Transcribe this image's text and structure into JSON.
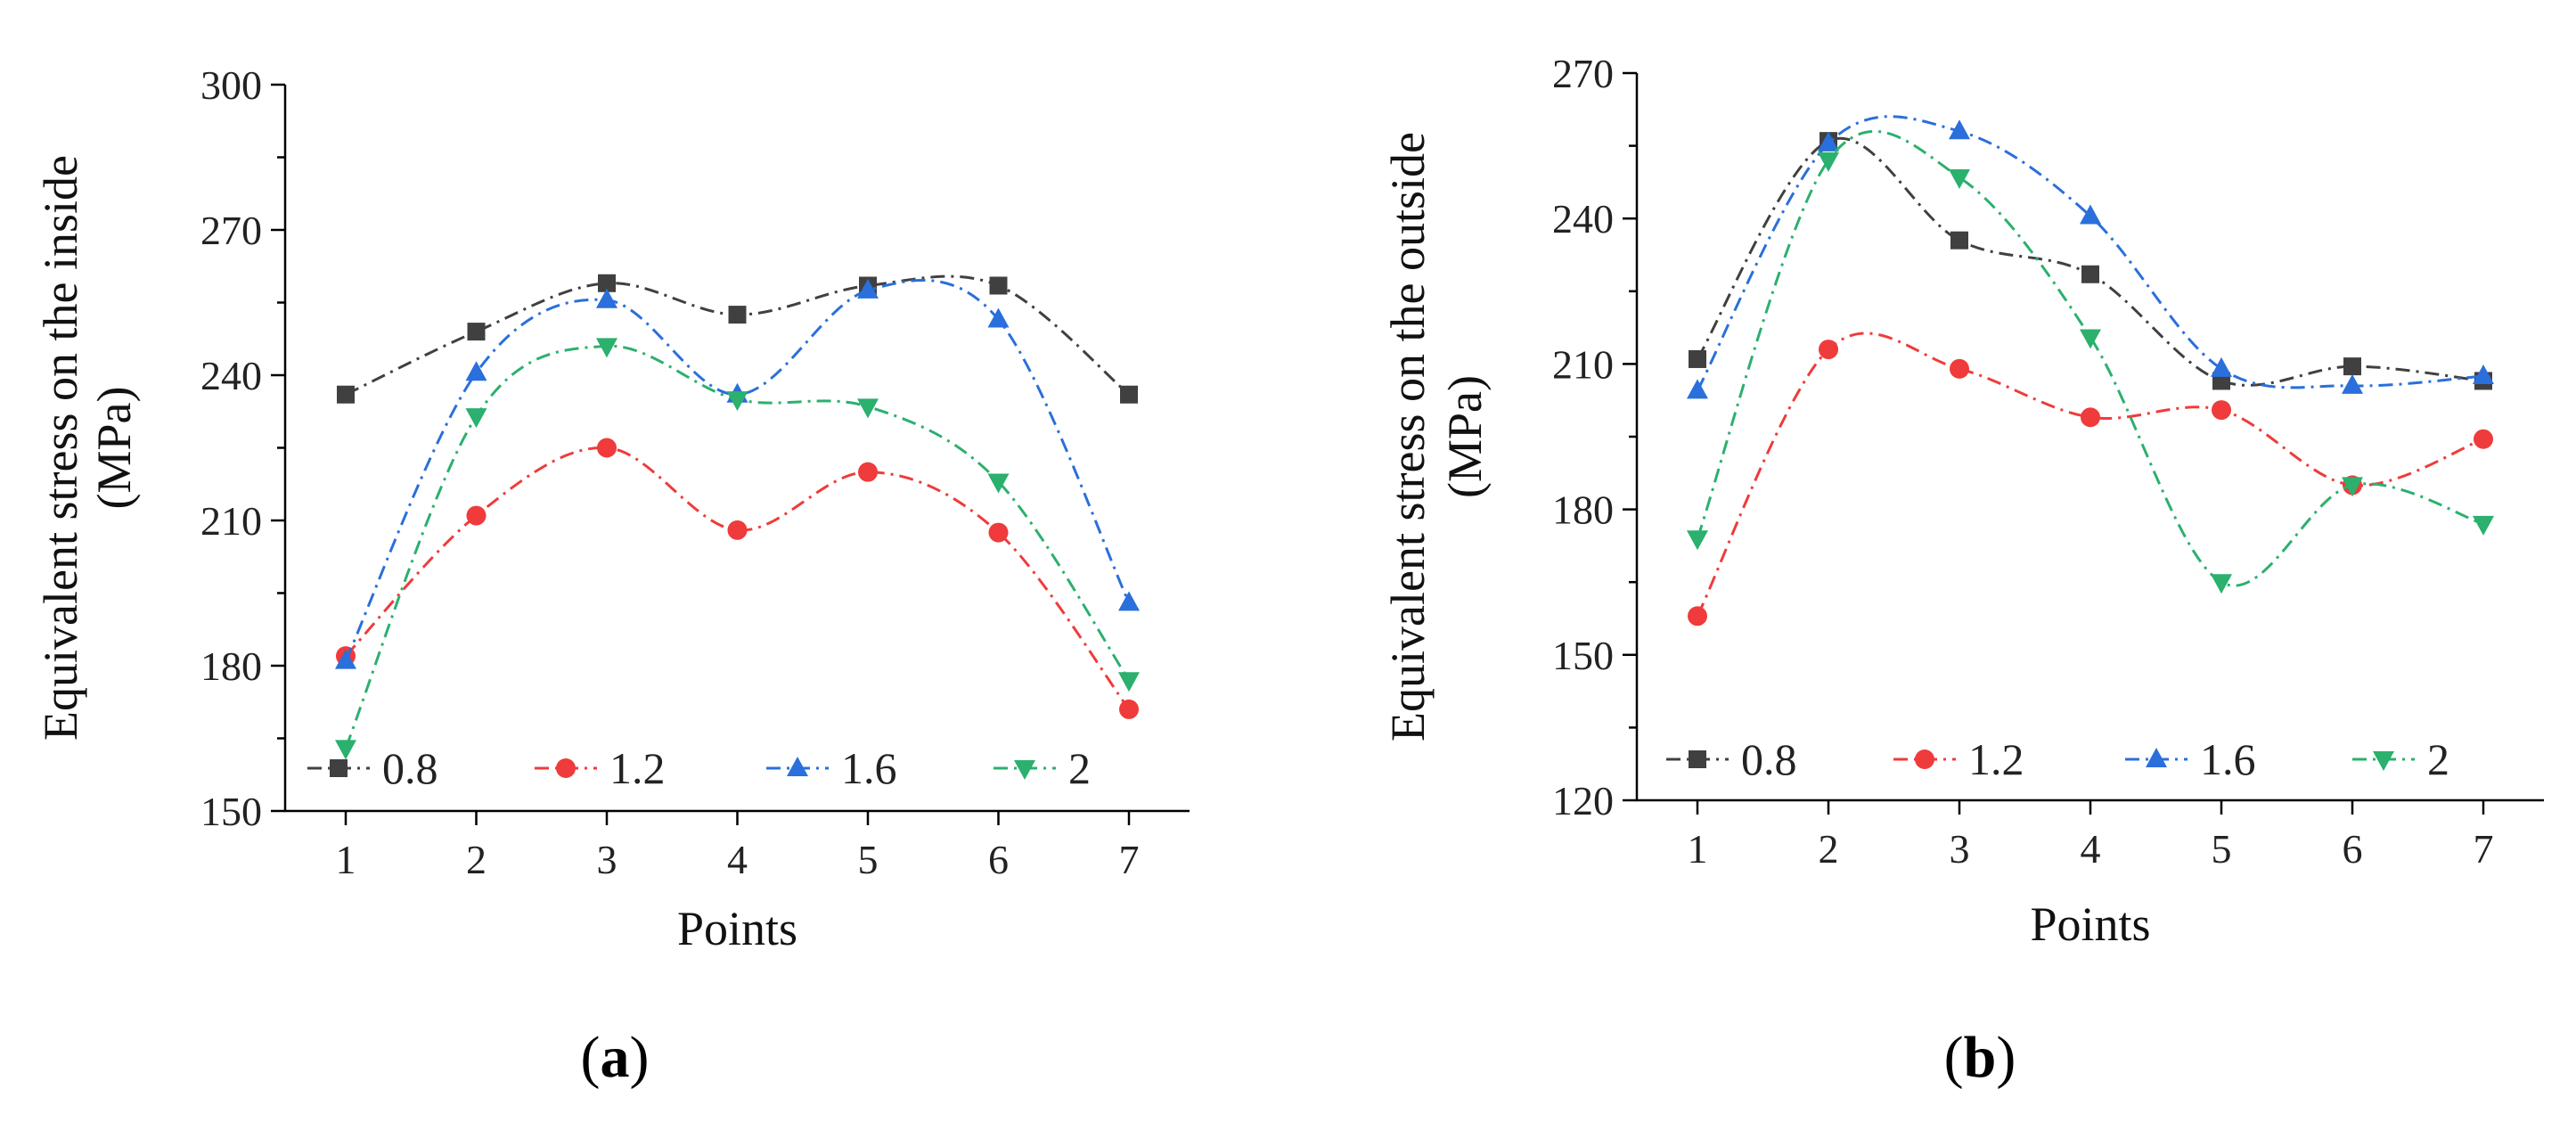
{
  "chart_data": [
    {
      "type": "line",
      "panel_label": "(a)",
      "panel_letter": "a",
      "xlabel": "Points",
      "ylabel_line1": "Equivalent stress on the inside",
      "ylabel_line2": "(MPa)",
      "x": [
        1,
        2,
        3,
        4,
        5,
        6,
        7
      ],
      "xticks": [
        "1",
        "2",
        "3",
        "4",
        "5",
        "6",
        "7"
      ],
      "ylim": [
        150,
        300
      ],
      "yticks": [
        150,
        180,
        210,
        240,
        270,
        300
      ],
      "legend_position": "bottom",
      "series": [
        {
          "name": "0.8",
          "color": "#404040",
          "marker": "square",
          "dash": "dashdot",
          "values": [
            236,
            249,
            259,
            252.5,
            258.5,
            258.5,
            236
          ]
        },
        {
          "name": "1.2",
          "color": "#ef3b3b",
          "marker": "circle",
          "dash": "dashdot",
          "values": [
            182,
            211,
            225,
            208,
            220,
            207.5,
            171
          ]
        },
        {
          "name": "1.6",
          "color": "#2a6fdb",
          "marker": "triangle-up",
          "dash": "dashdot",
          "values": [
            181,
            240.5,
            255.5,
            236,
            257.5,
            251.5,
            193
          ]
        },
        {
          "name": "2",
          "color": "#2bb06e",
          "marker": "triangle-down",
          "dash": "dashdot",
          "values": [
            163,
            231.5,
            246,
            235,
            233.5,
            218,
            177
          ]
        }
      ]
    },
    {
      "type": "line",
      "panel_label": "(b)",
      "panel_letter": "b",
      "xlabel": "Points",
      "ylabel_line1": "Equivalent stress on the outside",
      "ylabel_line2": "(MPa)",
      "x": [
        1,
        2,
        3,
        4,
        5,
        6,
        7
      ],
      "xticks": [
        "1",
        "2",
        "3",
        "4",
        "5",
        "6",
        "7"
      ],
      "ylim": [
        120,
        270
      ],
      "yticks": [
        120,
        150,
        180,
        210,
        240,
        270
      ],
      "legend_position": "bottom",
      "series": [
        {
          "name": "0.8",
          "color": "#404040",
          "marker": "square",
          "dash": "dashdot",
          "values": [
            211,
            256,
            235.5,
            228.5,
            206.5,
            209.5,
            206.5
          ]
        },
        {
          "name": "1.2",
          "color": "#ef3b3b",
          "marker": "circle",
          "dash": "dashdot",
          "values": [
            158,
            213,
            209,
            199,
            200.5,
            185,
            194.5
          ]
        },
        {
          "name": "1.6",
          "color": "#2a6fdb",
          "marker": "triangle-up",
          "dash": "dashdot",
          "values": [
            204.5,
            255.5,
            258,
            240.5,
            209,
            205.5,
            207.5
          ]
        },
        {
          "name": "2",
          "color": "#2bb06e",
          "marker": "triangle-down",
          "dash": "dashdot",
          "values": [
            174,
            252,
            248.5,
            215.5,
            165,
            185,
            177
          ]
        }
      ]
    }
  ]
}
